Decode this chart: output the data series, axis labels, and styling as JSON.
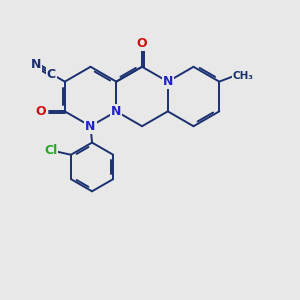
{
  "background_color": "#e8e8e8",
  "bond_color": "#1a3070",
  "bond_width": 1.4,
  "figsize": [
    3.0,
    3.0
  ],
  "dpi": 100,
  "colors": {
    "N": "#2222cc",
    "O": "#cc1111",
    "Cl": "#22aa22",
    "C": "#1a3070",
    "bond": "#1a3070"
  }
}
